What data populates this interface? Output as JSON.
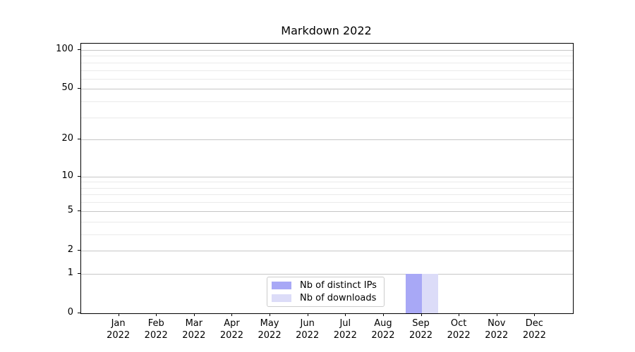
{
  "chart_data": {
    "type": "bar",
    "title": "Markdown 2022",
    "categories": [
      "Jan 2022",
      "Feb 2022",
      "Mar 2022",
      "Apr 2022",
      "May 2022",
      "Jun 2022",
      "Jul 2022",
      "Aug 2022",
      "Sep 2022",
      "Oct 2022",
      "Nov 2022",
      "Dec 2022"
    ],
    "series": [
      {
        "name": "Nb of distinct IPs",
        "color": "#a8a8f6",
        "values": [
          0,
          0,
          0,
          0,
          0,
          0,
          0,
          0,
          1,
          0,
          0,
          0
        ]
      },
      {
        "name": "Nb of downloads",
        "color": "#dcdcf8",
        "values": [
          0,
          0,
          0,
          0,
          0,
          0,
          0,
          0,
          1,
          0,
          0,
          0
        ]
      }
    ],
    "xlabel": "",
    "ylabel": "",
    "yscale": "log1p-symlog",
    "ylim": [
      0,
      112
    ],
    "yticks": [
      0,
      1,
      2,
      5,
      10,
      20,
      50,
      100
    ],
    "yticks_minor": [
      3,
      4,
      6,
      7,
      8,
      9,
      30,
      40,
      60,
      70,
      80,
      90
    ],
    "grid": "horizontal major+minor",
    "legend_position": "lower center"
  },
  "colors": {
    "distinct_ips_bar": "#a8a8f6",
    "downloads_bar": "#dcdcf8",
    "grid_major": "#c6c6c6",
    "grid_minor": "#eaeaea",
    "spine": "#000000",
    "legend_border": "#cccccc",
    "background": "#ffffff"
  }
}
